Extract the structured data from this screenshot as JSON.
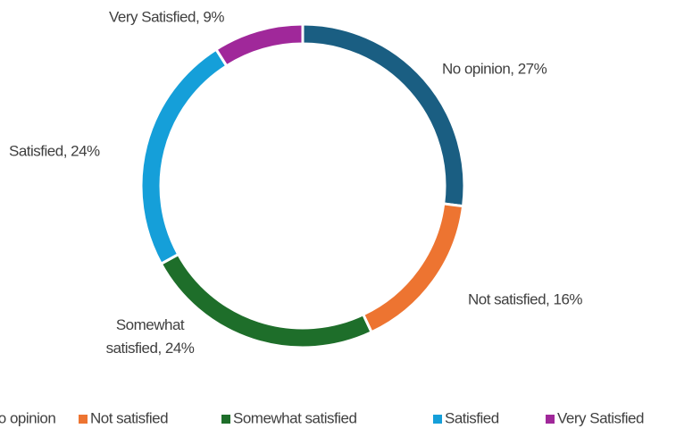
{
  "chart_data": {
    "type": "donut",
    "categories": [
      "No opinion",
      "Not satisfied",
      "Somewhat satisfied",
      "Satisfied",
      "Very Satisfied"
    ],
    "values": [
      27,
      16,
      24,
      24,
      9
    ],
    "value_labels": [
      "No opinion, 27%",
      "Not satisfied, 16%",
      "Somewhat satisfied, 24%",
      "Satisfied, 24%",
      "Very Satisfied, 9%"
    ],
    "colors": [
      "#1a5e82",
      "#ed7431",
      "#1e6e2a",
      "#159fd9",
      "#a0289a"
    ],
    "legend": "bottom"
  }
}
